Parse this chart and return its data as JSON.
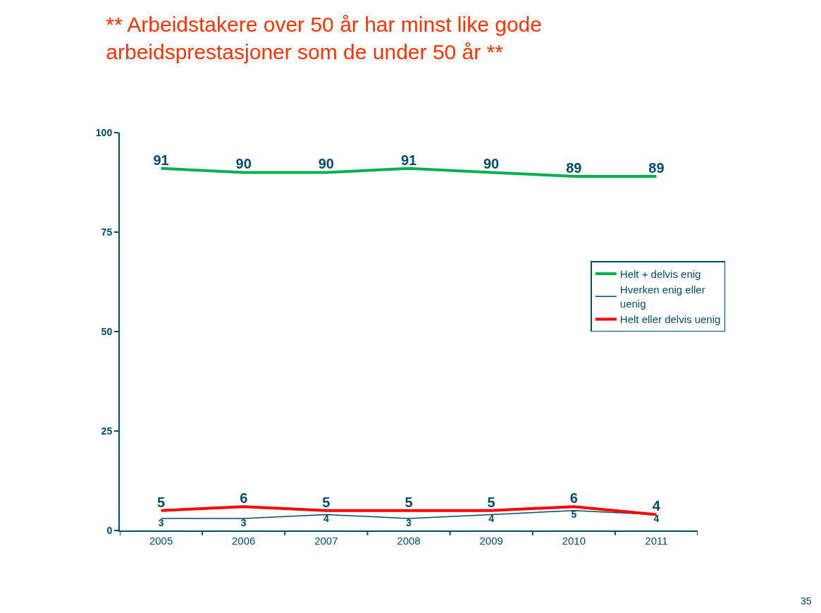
{
  "chart_data": {
    "type": "line",
    "title": "** Arbeidstakere over 50 år har minst like gode arbeidsprestasjoner som de under 50 år **",
    "categories": [
      "2005",
      "2006",
      "2007",
      "2008",
      "2009",
      "2010",
      "2011"
    ],
    "series": [
      {
        "name": "Helt + delvis enig",
        "color": "#00b050",
        "values": [
          91,
          90,
          90,
          91,
          90,
          89,
          89
        ]
      },
      {
        "name": "Hverken enig eller uenig",
        "color": "#004b6b",
        "values": [
          3,
          3,
          4,
          3,
          4,
          5,
          4
        ]
      },
      {
        "name": "Helt eller delvis uenig",
        "color": "#ff0000",
        "values": [
          5,
          6,
          5,
          5,
          5,
          6,
          4
        ]
      }
    ],
    "ylim": [
      0,
      100
    ],
    "yticks": [
      0,
      25,
      50,
      75,
      100
    ],
    "legend": "right",
    "data_labels": true,
    "marker": "none",
    "line_style": "solid",
    "annotations": [
      "35"
    ]
  }
}
